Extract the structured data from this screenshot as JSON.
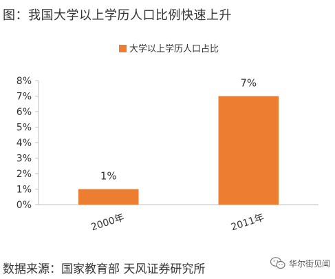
{
  "caption": "图：我国大学以上学历人口比例快速上升",
  "source": "数据来源：国家教育部 天风证券研究所",
  "watermark": {
    "text": "华尔街见闻",
    "icon": "wechat-icon"
  },
  "colors": {
    "bar": "#ED7D31",
    "axis": "#BFBFBF",
    "text": "#333333"
  },
  "chart_data": {
    "type": "bar",
    "categories": [
      "2000年",
      "2011年"
    ],
    "series": [
      {
        "name": "大学以上学历人口占比",
        "values": [
          1,
          7
        ],
        "data_labels": [
          "1%",
          "7%"
        ]
      }
    ],
    "yticks": [
      "0%",
      "1%",
      "2%",
      "3%",
      "4%",
      "5%",
      "6%",
      "7%",
      "8%"
    ],
    "ylim": [
      0,
      8
    ],
    "legend_position": "top",
    "grid": false
  }
}
